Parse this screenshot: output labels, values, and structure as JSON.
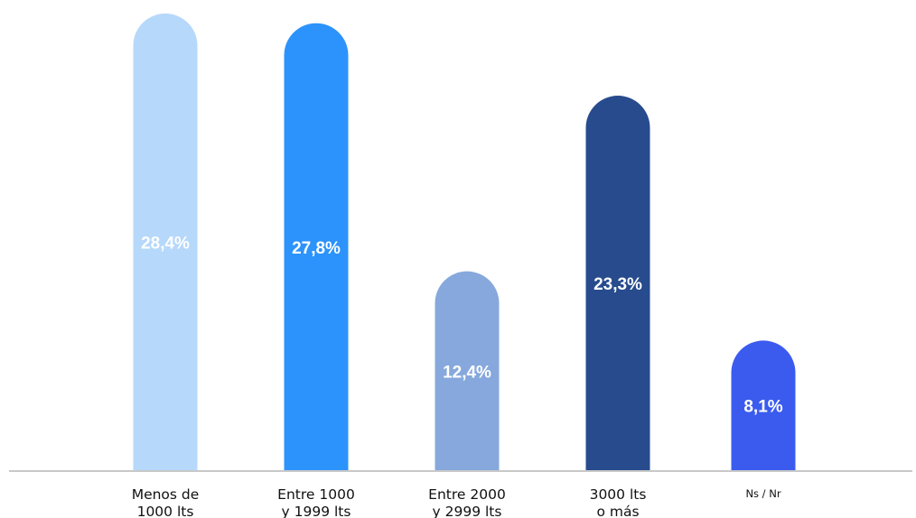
{
  "chart_data": {
    "type": "bar",
    "categories": [
      [
        "Menos de",
        "1000 lts"
      ],
      [
        "Entre 1000",
        "y 1999 lts"
      ],
      [
        "Entre 2000",
        "y 2999 lts"
      ],
      [
        "3000  lts",
        "o más"
      ],
      [
        "Ns / Nr"
      ]
    ],
    "values": [
      28.4,
      27.8,
      12.4,
      23.3,
      8.1
    ],
    "value_labels": [
      "28,4%",
      "27,8%",
      "12,4%",
      "23,3%",
      "8,1%"
    ],
    "colors": [
      "#b6d8fa",
      "#2c93fc",
      "#86a8dc",
      "#274b8d",
      "#3b5bef"
    ],
    "axis_line_color": "#c8c8c8",
    "ylim": [
      0,
      28.4
    ],
    "grid": false,
    "legend": "none"
  }
}
